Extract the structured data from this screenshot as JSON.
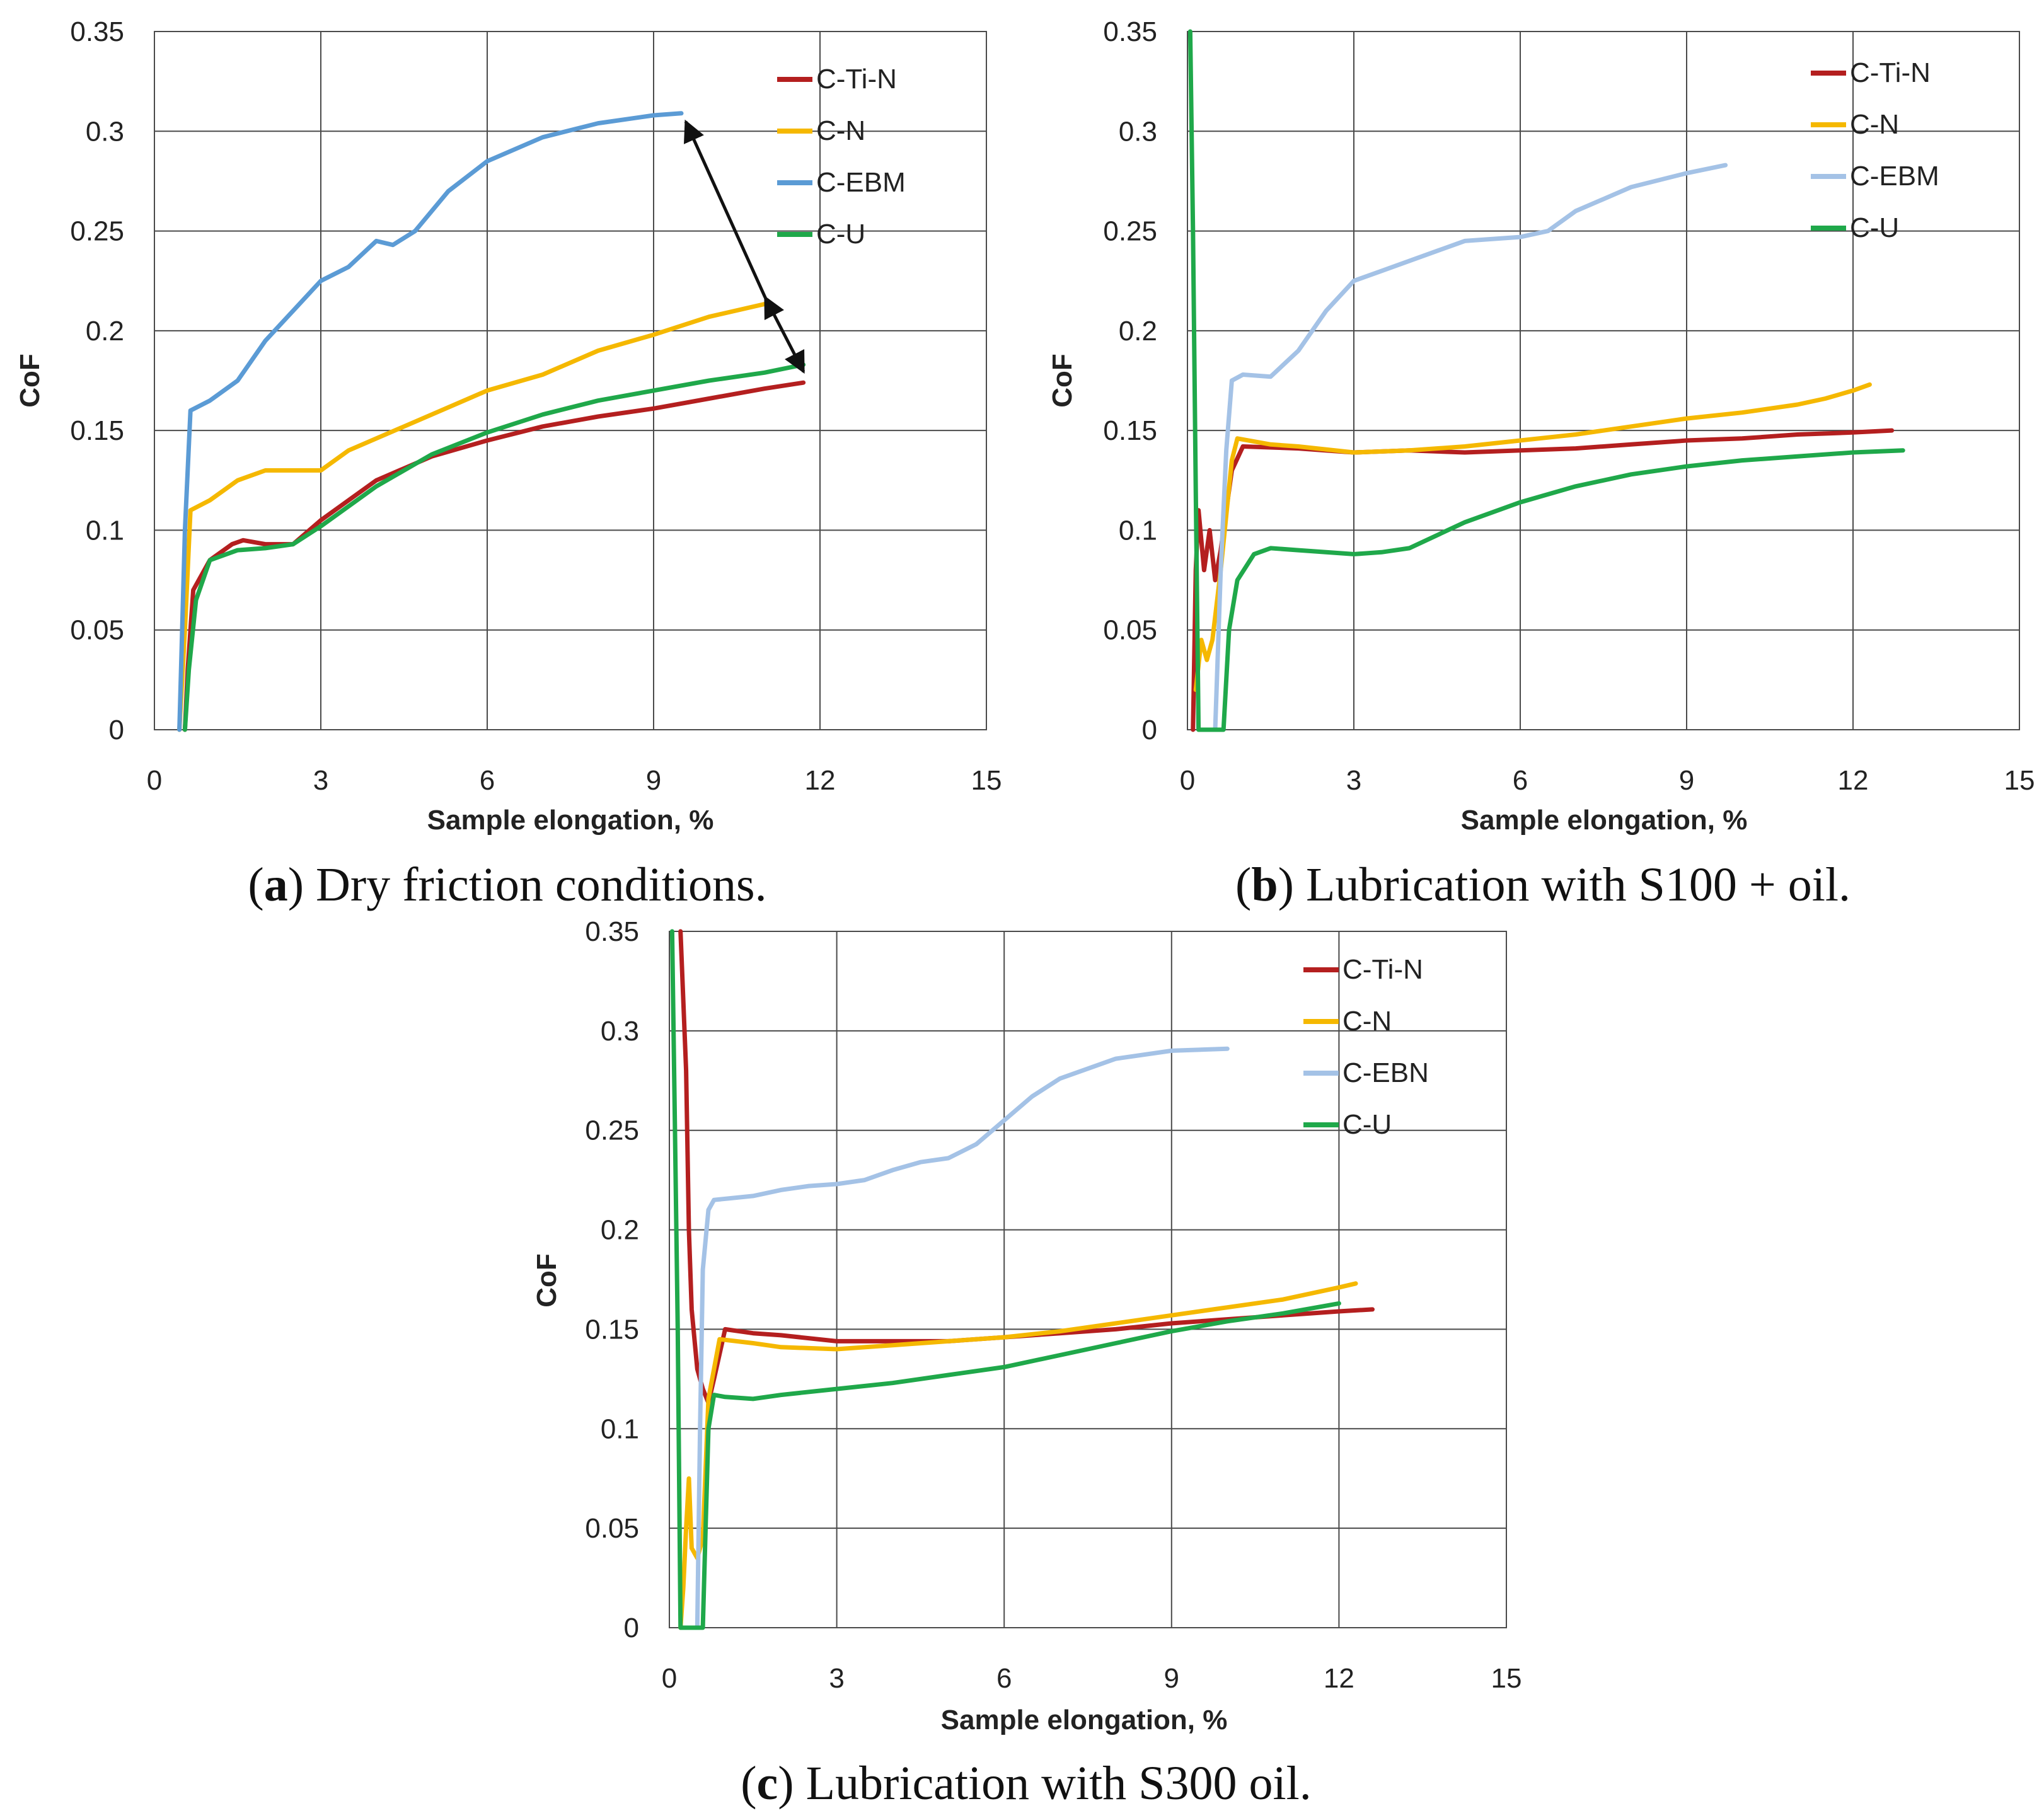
{
  "chart_data": [
    {
      "type": "line",
      "id": "a",
      "panel_letter": "a",
      "caption_text": "Dry friction conditions.",
      "xlabel": "Sample elongation, %",
      "ylabel": "CoF",
      "xlim": [
        0,
        15
      ],
      "ylim": [
        0,
        0.35
      ],
      "xticks": [
        "0",
        "3",
        "6",
        "9",
        "12",
        "15"
      ],
      "yticks": [
        "0",
        "0.05",
        "0.1",
        "0.15",
        "0.2",
        "0.25",
        "0.3",
        "0.35"
      ],
      "grid": true,
      "legend_position": "top-right",
      "series": [
        {
          "name": "C-Ti-N",
          "color": "#b41f1f",
          "points": [
            [
              0.55,
              0
            ],
            [
              0.6,
              0.03
            ],
            [
              0.7,
              0.07
            ],
            [
              1.0,
              0.085
            ],
            [
              1.4,
              0.093
            ],
            [
              1.6,
              0.095
            ],
            [
              2.0,
              0.093
            ],
            [
              2.5,
              0.093
            ],
            [
              3.0,
              0.105
            ],
            [
              4.0,
              0.125
            ],
            [
              5.0,
              0.137
            ],
            [
              6.0,
              0.145
            ],
            [
              7.0,
              0.152
            ],
            [
              8.0,
              0.157
            ],
            [
              9.0,
              0.161
            ],
            [
              10.0,
              0.166
            ],
            [
              11.0,
              0.171
            ],
            [
              11.7,
              0.174
            ]
          ]
        },
        {
          "name": "C-N",
          "color": "#f5b800",
          "points": [
            [
              0.45,
              0
            ],
            [
              0.55,
              0.05
            ],
            [
              0.65,
              0.11
            ],
            [
              1.0,
              0.115
            ],
            [
              1.5,
              0.125
            ],
            [
              2.0,
              0.13
            ],
            [
              2.5,
              0.13
            ],
            [
              3.0,
              0.13
            ],
            [
              3.5,
              0.14
            ],
            [
              4.5,
              0.152
            ],
            [
              6.0,
              0.17
            ],
            [
              7.0,
              0.178
            ],
            [
              8.0,
              0.19
            ],
            [
              9.0,
              0.198
            ],
            [
              10.0,
              0.207
            ],
            [
              11.1,
              0.214
            ]
          ]
        },
        {
          "name": "C-EBM",
          "color": "#5b9bd5",
          "points": [
            [
              0.45,
              0
            ],
            [
              0.55,
              0.1
            ],
            [
              0.65,
              0.16
            ],
            [
              1.0,
              0.165
            ],
            [
              1.5,
              0.175
            ],
            [
              2.0,
              0.195
            ],
            [
              2.5,
              0.21
            ],
            [
              3.0,
              0.225
            ],
            [
              3.5,
              0.232
            ],
            [
              4.0,
              0.245
            ],
            [
              4.3,
              0.243
            ],
            [
              4.7,
              0.25
            ],
            [
              5.3,
              0.27
            ],
            [
              6.0,
              0.285
            ],
            [
              7.0,
              0.297
            ],
            [
              8.0,
              0.304
            ],
            [
              9.0,
              0.308
            ],
            [
              9.5,
              0.309
            ]
          ]
        },
        {
          "name": "C-U",
          "color": "#1fa84a",
          "points": [
            [
              0.55,
              0
            ],
            [
              0.62,
              0.03
            ],
            [
              0.75,
              0.065
            ],
            [
              1.0,
              0.085
            ],
            [
              1.5,
              0.09
            ],
            [
              2.0,
              0.091
            ],
            [
              2.5,
              0.093
            ],
            [
              3.0,
              0.102
            ],
            [
              4.0,
              0.122
            ],
            [
              5.0,
              0.138
            ],
            [
              6.0,
              0.149
            ],
            [
              7.0,
              0.158
            ],
            [
              8.0,
              0.165
            ],
            [
              9.0,
              0.17
            ],
            [
              10.0,
              0.175
            ],
            [
              11.0,
              0.179
            ],
            [
              11.7,
              0.183
            ]
          ]
        }
      ]
    },
    {
      "type": "line",
      "id": "b",
      "panel_letter": "b",
      "caption_text": "Lubrication with S100 + oil.",
      "xlabel": "Sample elongation, %",
      "ylabel": "CoF",
      "xlim": [
        0,
        15
      ],
      "ylim": [
        0,
        0.35
      ],
      "xticks": [
        "0",
        "3",
        "6",
        "9",
        "12",
        "15"
      ],
      "yticks": [
        "0",
        "0.05",
        "0.1",
        "0.15",
        "0.2",
        "0.25",
        "0.3",
        "0.35"
      ],
      "grid": true,
      "legend_position": "top-right",
      "series": [
        {
          "name": "C-Ti-N",
          "color": "#b41f1f",
          "points": [
            [
              0.1,
              0
            ],
            [
              0.15,
              0.08
            ],
            [
              0.2,
              0.11
            ],
            [
              0.3,
              0.08
            ],
            [
              0.4,
              0.1
            ],
            [
              0.5,
              0.075
            ],
            [
              0.6,
              0.09
            ],
            [
              0.8,
              0.13
            ],
            [
              1.0,
              0.142
            ],
            [
              2.0,
              0.141
            ],
            [
              3.0,
              0.139
            ],
            [
              4.0,
              0.14
            ],
            [
              5.0,
              0.139
            ],
            [
              6.0,
              0.14
            ],
            [
              7.0,
              0.141
            ],
            [
              8.0,
              0.143
            ],
            [
              9.0,
              0.145
            ],
            [
              10.0,
              0.146
            ],
            [
              11.0,
              0.148
            ],
            [
              12.0,
              0.149
            ],
            [
              12.7,
              0.15
            ]
          ]
        },
        {
          "name": "C-N",
          "color": "#f5b800",
          "points": [
            [
              0.15,
              0.02
            ],
            [
              0.25,
              0.045
            ],
            [
              0.35,
              0.035
            ],
            [
              0.45,
              0.045
            ],
            [
              0.6,
              0.08
            ],
            [
              0.8,
              0.135
            ],
            [
              0.9,
              0.146
            ],
            [
              1.5,
              0.143
            ],
            [
              2.0,
              0.142
            ],
            [
              3.0,
              0.139
            ],
            [
              4.0,
              0.14
            ],
            [
              5.0,
              0.142
            ],
            [
              6.0,
              0.145
            ],
            [
              7.0,
              0.148
            ],
            [
              8.0,
              0.152
            ],
            [
              9.0,
              0.156
            ],
            [
              10.0,
              0.159
            ],
            [
              11.0,
              0.163
            ],
            [
              11.5,
              0.166
            ],
            [
              12.0,
              0.17
            ],
            [
              12.3,
              0.173
            ]
          ]
        },
        {
          "name": "C-EBM",
          "color": "#a4c2e6",
          "points": [
            [
              0.5,
              0
            ],
            [
              0.6,
              0.08
            ],
            [
              0.7,
              0.14
            ],
            [
              0.8,
              0.175
            ],
            [
              1.0,
              0.178
            ],
            [
              1.5,
              0.177
            ],
            [
              2.0,
              0.19
            ],
            [
              2.5,
              0.21
            ],
            [
              3.0,
              0.225
            ],
            [
              3.5,
              0.23
            ],
            [
              4.0,
              0.235
            ],
            [
              4.5,
              0.24
            ],
            [
              5.0,
              0.245
            ],
            [
              6.0,
              0.247
            ],
            [
              6.5,
              0.25
            ],
            [
              7.0,
              0.26
            ],
            [
              8.0,
              0.272
            ],
            [
              9.0,
              0.279
            ],
            [
              9.7,
              0.283
            ]
          ]
        },
        {
          "name": "C-U",
          "color": "#1fa84a",
          "points": [
            [
              0.05,
              0.35
            ],
            [
              0.1,
              0.25
            ],
            [
              0.15,
              0.12
            ],
            [
              0.2,
              0
            ],
            [
              0.65,
              0
            ],
            [
              0.75,
              0.05
            ],
            [
              0.9,
              0.075
            ],
            [
              1.2,
              0.088
            ],
            [
              1.5,
              0.091
            ],
            [
              2.0,
              0.09
            ],
            [
              3.0,
              0.088
            ],
            [
              3.5,
              0.089
            ],
            [
              4.0,
              0.091
            ],
            [
              5.0,
              0.104
            ],
            [
              6.0,
              0.114
            ],
            [
              7.0,
              0.122
            ],
            [
              8.0,
              0.128
            ],
            [
              9.0,
              0.132
            ],
            [
              10.0,
              0.135
            ],
            [
              11.0,
              0.137
            ],
            [
              12.0,
              0.139
            ],
            [
              12.9,
              0.14
            ]
          ]
        }
      ]
    },
    {
      "type": "line",
      "id": "c",
      "panel_letter": "c",
      "caption_text": "Lubrication with S300 oil.",
      "xlabel": "Sample elongation, %",
      "ylabel": "CoF",
      "xlim": [
        0,
        15
      ],
      "ylim": [
        0,
        0.35
      ],
      "xticks": [
        "0",
        "3",
        "6",
        "9",
        "12",
        "15"
      ],
      "yticks": [
        "0",
        "0.05",
        "0.1",
        "0.15",
        "0.2",
        "0.25",
        "0.3",
        "0.35"
      ],
      "grid": true,
      "legend_position": "top-right",
      "series": [
        {
          "name": "C-Ti-N",
          "color": "#b41f1f",
          "points": [
            [
              0.2,
              0.35
            ],
            [
              0.3,
              0.28
            ],
            [
              0.35,
              0.2
            ],
            [
              0.4,
              0.16
            ],
            [
              0.5,
              0.13
            ],
            [
              0.6,
              0.12
            ],
            [
              0.7,
              0.113
            ],
            [
              0.8,
              0.125
            ],
            [
              1.0,
              0.15
            ],
            [
              1.5,
              0.148
            ],
            [
              2.0,
              0.147
            ],
            [
              3.0,
              0.144
            ],
            [
              4.0,
              0.144
            ],
            [
              5.0,
              0.144
            ],
            [
              6.0,
              0.146
            ],
            [
              7.0,
              0.148
            ],
            [
              8.0,
              0.15
            ],
            [
              9.0,
              0.153
            ],
            [
              10.0,
              0.155
            ],
            [
              11.0,
              0.157
            ],
            [
              12.0,
              0.159
            ],
            [
              12.6,
              0.16
            ]
          ]
        },
        {
          "name": "C-N",
          "color": "#f5b800",
          "points": [
            [
              0.2,
              0
            ],
            [
              0.25,
              0.02
            ],
            [
              0.3,
              0.05
            ],
            [
              0.35,
              0.075
            ],
            [
              0.4,
              0.04
            ],
            [
              0.5,
              0.035
            ],
            [
              0.6,
              0.045
            ],
            [
              0.7,
              0.115
            ],
            [
              0.9,
              0.145
            ],
            [
              1.5,
              0.143
            ],
            [
              2.0,
              0.141
            ],
            [
              3.0,
              0.14
            ],
            [
              4.0,
              0.142
            ],
            [
              5.0,
              0.144
            ],
            [
              6.0,
              0.146
            ],
            [
              7.0,
              0.149
            ],
            [
              8.0,
              0.153
            ],
            [
              9.0,
              0.157
            ],
            [
              10.0,
              0.161
            ],
            [
              11.0,
              0.165
            ],
            [
              12.0,
              0.171
            ],
            [
              12.3,
              0.173
            ]
          ]
        },
        {
          "name": "C-EBN",
          "color": "#a4c2e6",
          "points": [
            [
              0.5,
              0
            ],
            [
              0.55,
              0.1
            ],
            [
              0.6,
              0.18
            ],
            [
              0.7,
              0.21
            ],
            [
              0.8,
              0.215
            ],
            [
              1.5,
              0.217
            ],
            [
              2.0,
              0.22
            ],
            [
              2.5,
              0.222
            ],
            [
              3.0,
              0.223
            ],
            [
              3.5,
              0.225
            ],
            [
              4.0,
              0.23
            ],
            [
              4.5,
              0.234
            ],
            [
              5.0,
              0.236
            ],
            [
              5.5,
              0.243
            ],
            [
              6.0,
              0.255
            ],
            [
              6.5,
              0.267
            ],
            [
              7.0,
              0.276
            ],
            [
              8.0,
              0.286
            ],
            [
              9.0,
              0.29
            ],
            [
              10.0,
              0.291
            ]
          ]
        },
        {
          "name": "C-U",
          "color": "#1fa84a",
          "points": [
            [
              0.05,
              0.35
            ],
            [
              0.1,
              0.25
            ],
            [
              0.15,
              0.15
            ],
            [
              0.2,
              0
            ],
            [
              0.6,
              0
            ],
            [
              0.65,
              0.05
            ],
            [
              0.7,
              0.1
            ],
            [
              0.8,
              0.117
            ],
            [
              1.0,
              0.116
            ],
            [
              1.5,
              0.115
            ],
            [
              2.0,
              0.117
            ],
            [
              3.0,
              0.12
            ],
            [
              4.0,
              0.123
            ],
            [
              5.0,
              0.127
            ],
            [
              6.0,
              0.131
            ],
            [
              7.0,
              0.137
            ],
            [
              8.0,
              0.143
            ],
            [
              9.0,
              0.149
            ],
            [
              10.0,
              0.154
            ],
            [
              11.0,
              0.158
            ],
            [
              12.0,
              0.163
            ]
          ]
        }
      ]
    }
  ]
}
